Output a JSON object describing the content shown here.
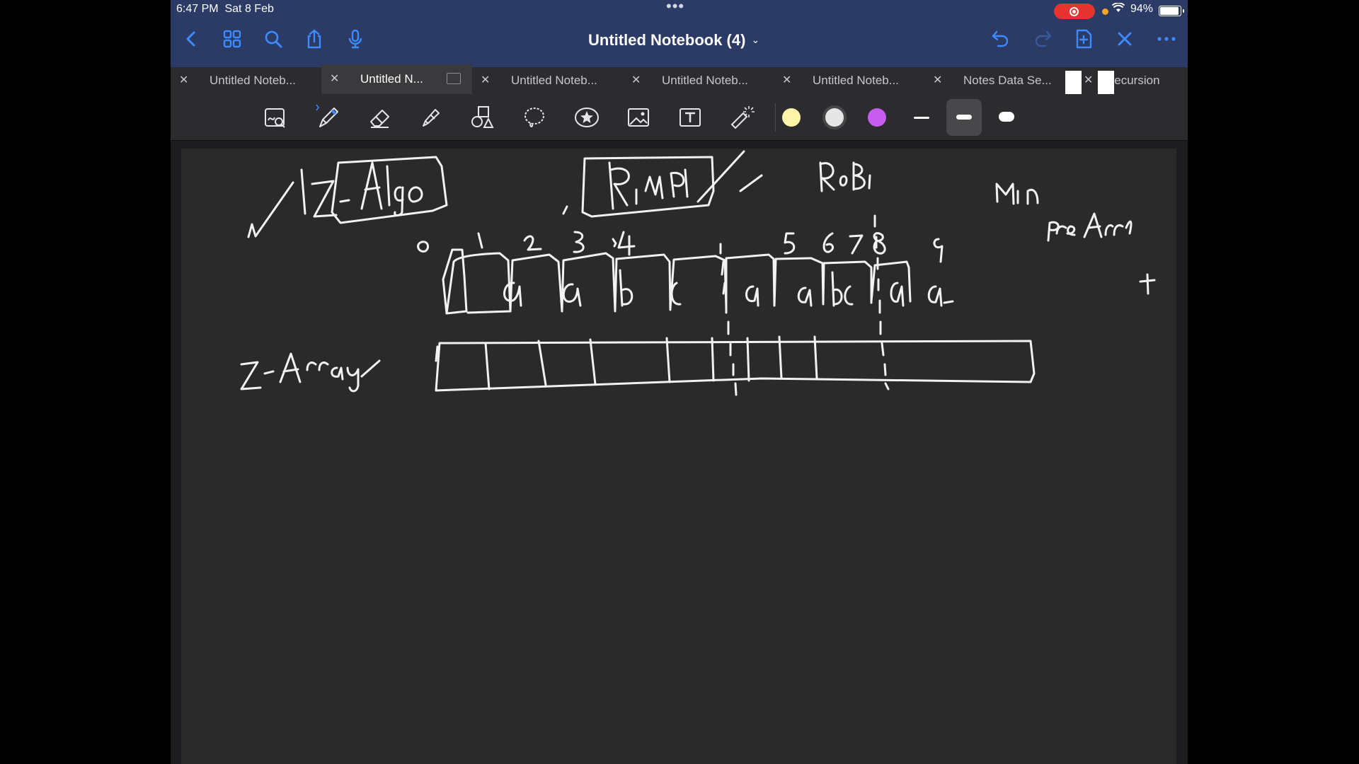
{
  "status_bar": {
    "time": "6:47 PM",
    "date": "Sat 8 Feb",
    "battery": "94%",
    "colors": {
      "recording": "#e5342f",
      "indicator": "#f5a623"
    }
  },
  "header": {
    "title": "Untitled Notebook (4)",
    "icons": [
      "back-icon",
      "grid-icon",
      "search-icon",
      "share-icon",
      "microphone-icon",
      "undo-icon",
      "redo-icon",
      "add-page-icon",
      "close-icon",
      "more-icon"
    ],
    "accent": "#3d8bff"
  },
  "tabs": [
    {
      "label": "Untitled Noteb...",
      "active": false
    },
    {
      "label": "Untitled N...",
      "active": true
    },
    {
      "label": "Untitled Noteb...",
      "active": false
    },
    {
      "label": "Untitled Noteb...",
      "active": false
    },
    {
      "label": "Untitled Noteb...",
      "active": false
    },
    {
      "label": "Notes Data Se...",
      "active": false
    },
    {
      "label": "Recursion",
      "active": false
    }
  ],
  "toolbar": {
    "tools": [
      "zoom-icon",
      "pen-icon",
      "eraser-icon",
      "highlighter-icon",
      "shapes-icon",
      "lasso-icon",
      "sticker-icon",
      "image-icon",
      "text-icon",
      "laser-pointer-icon"
    ],
    "colors": [
      "#fff5a8",
      "#e6e6e6",
      "#c85cf0"
    ],
    "selected_color": "#e6e6e6"
  },
  "canvas": {
    "background": "#2a2a2b",
    "index_labels": [
      "0",
      "1",
      "2",
      "3",
      "4",
      "5",
      "6",
      "7",
      "8",
      "9"
    ],
    "string_cells": [
      "a",
      "a",
      "b",
      "c",
      "a",
      "a",
      "b",
      "c",
      "a",
      "a"
    ]
  }
}
